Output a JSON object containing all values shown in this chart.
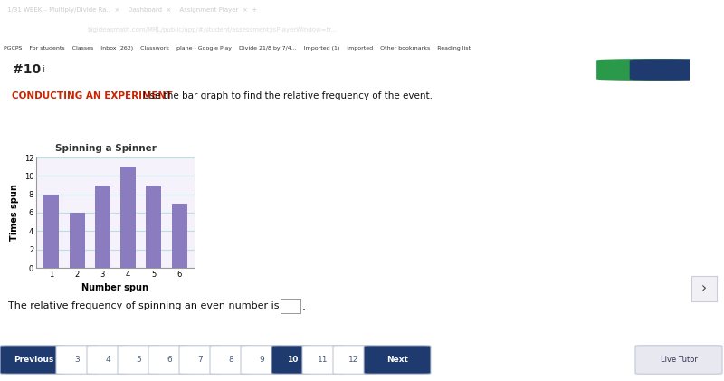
{
  "title": "Spinning a Spinner",
  "xlabel": "Number spun",
  "ylabel": "Times spun",
  "categories": [
    1,
    2,
    3,
    4,
    5,
    6
  ],
  "values": [
    8,
    6,
    9,
    11,
    9,
    7
  ],
  "bar_color": "#8b7bbf",
  "bar_edgecolor": "#7a6aaa",
  "ylim": [
    0,
    12
  ],
  "yticks": [
    0,
    2,
    4,
    6,
    8,
    10,
    12
  ],
  "title_bg_color": "#c5aee0",
  "chart_outer_bg": "#e0d8ef",
  "chart_inner_bg": "#f5f2fb",
  "grid_color": "#a0d8d8",
  "grid_alpha": 0.7,
  "instruction_bold": "CONDUCTING AN EXPERIMENT",
  "instruction_rest": "Use the bar graph to find the relative frequency of the event.",
  "question_text": "The relative frequency of spinning an even number is",
  "number_label": "#10",
  "page_bg": "#ffffff",
  "nav_bg": "#f5f5f8",
  "nav_active_color": "#1e3a6e",
  "nav_btn_border": "#c0c8d8",
  "nav_text_inactive": "#4a5a7a",
  "instruction_bold_color": "#cc2200",
  "instruction_rest_color": "#111111",
  "dark_line_color": "#1a3060",
  "browser_bg": "#2b3a5c",
  "tab_bar_bg": "#1e2d50",
  "bookmarks_bg": "#f0f0f5"
}
